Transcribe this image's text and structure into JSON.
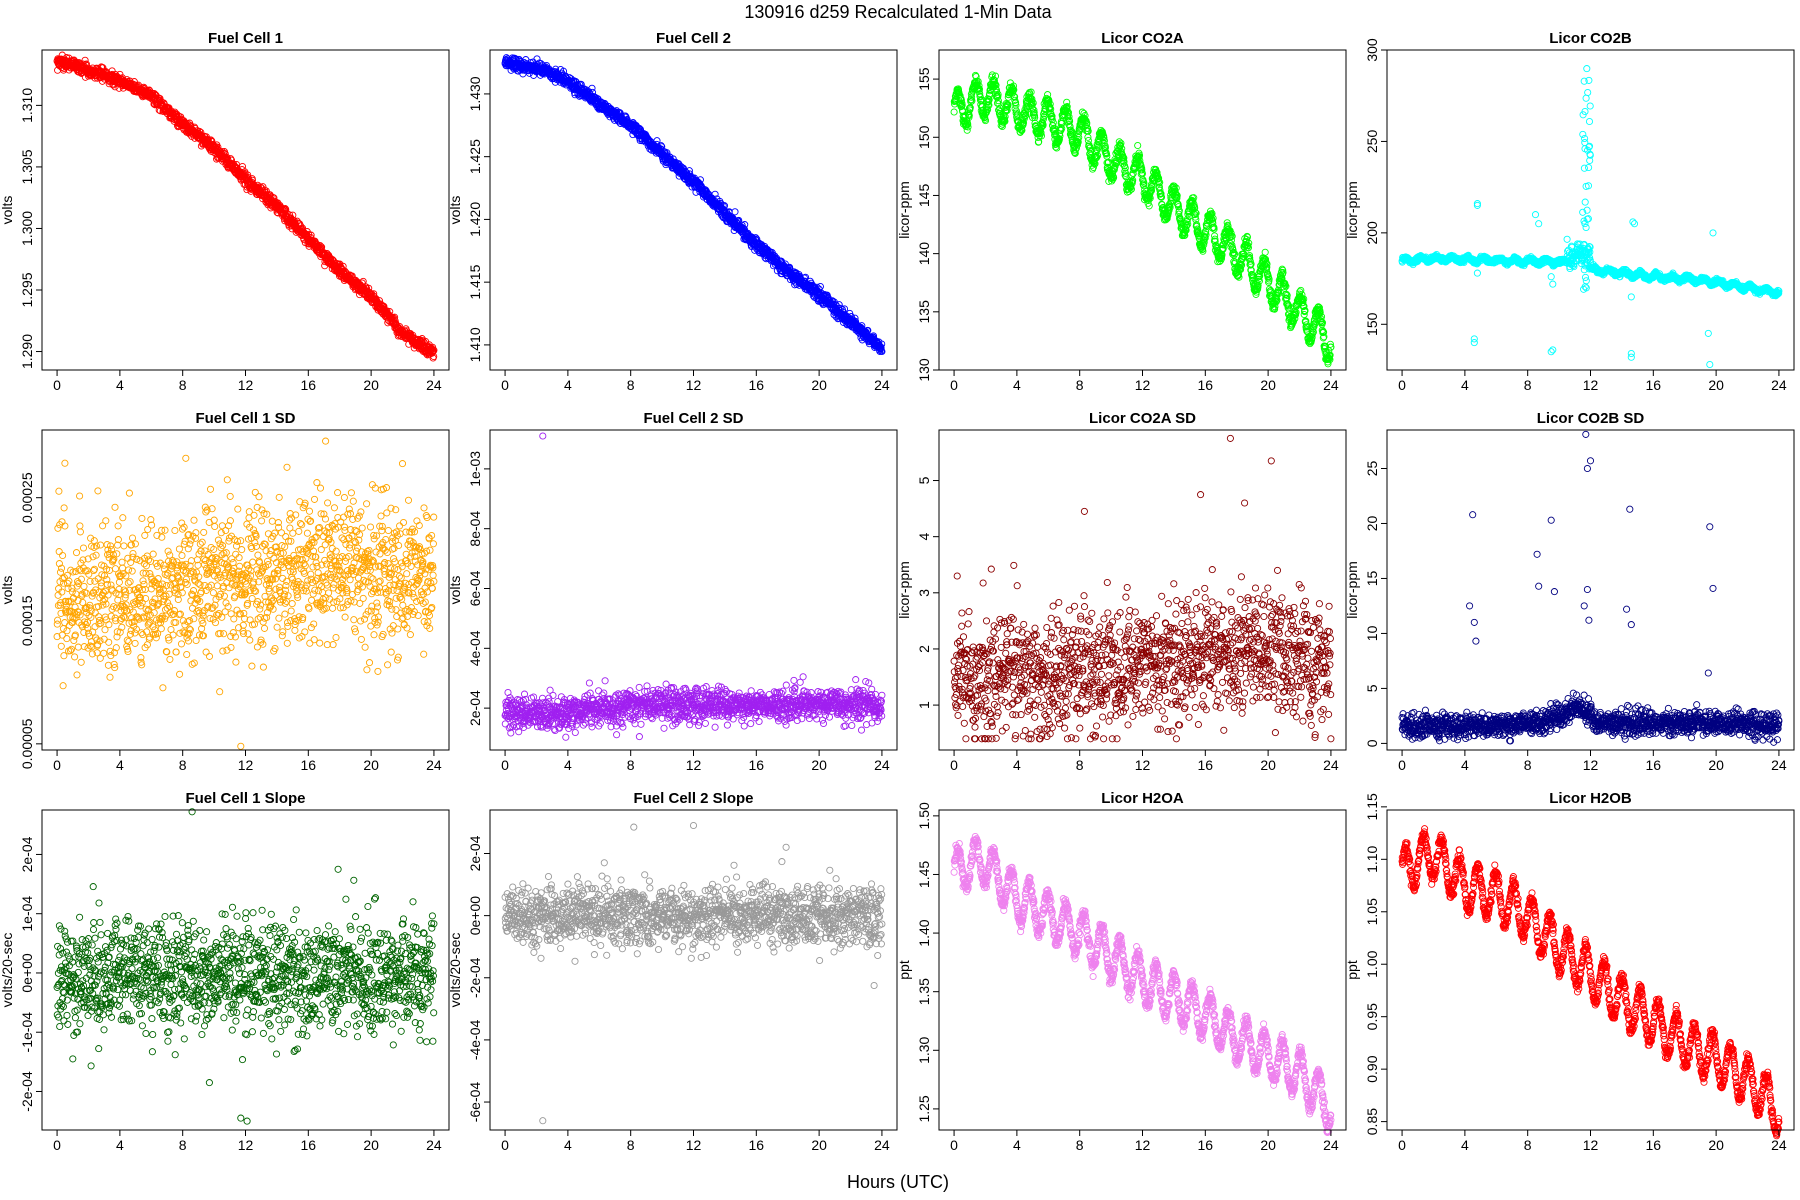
{
  "page": {
    "title": "130916   d259   Recalculated 1-Min Data",
    "xlabel": "Hours (UTC)"
  },
  "chart_data": [
    {
      "id": "fc1",
      "type": "scatter",
      "title": "Fuel Cell 1",
      "ylabel": "volts",
      "color": "#ff0000",
      "xlim": [
        -0.96,
        24.96
      ],
      "ylim": [
        1.2885,
        1.3145
      ],
      "xticks": [
        "0",
        "4",
        "8",
        "12",
        "16",
        "20",
        "24"
      ],
      "yticks": [
        "1.290",
        "1.295",
        "1.300",
        "1.305",
        "1.310"
      ],
      "model": "trend",
      "x_range": [
        0,
        24
      ],
      "n_points": 1440,
      "trend_x": [
        0,
        1,
        2,
        3,
        4,
        6,
        8,
        10,
        12,
        14,
        16,
        18,
        20,
        22,
        24
      ],
      "trend_y": [
        1.3135,
        1.3133,
        1.3128,
        1.3125,
        1.312,
        1.3108,
        1.3085,
        1.3065,
        1.304,
        1.3018,
        1.2992,
        1.2965,
        1.2945,
        1.2915,
        1.2898
      ],
      "noise": 0.00025
    },
    {
      "id": "fc2",
      "type": "scatter",
      "title": "Fuel Cell 2",
      "ylabel": "volts",
      "color": "#0000ff",
      "xlim": [
        -0.96,
        24.96
      ],
      "ylim": [
        1.408,
        1.4335
      ],
      "xticks": [
        "0",
        "4",
        "8",
        "12",
        "16",
        "20",
        "24"
      ],
      "yticks": [
        "1.410",
        "1.415",
        "1.420",
        "1.425",
        "1.430"
      ],
      "model": "trend",
      "x_range": [
        0,
        24
      ],
      "n_points": 1440,
      "trend_x": [
        0,
        1,
        2,
        3,
        4,
        6,
        8,
        10,
        12,
        14,
        16,
        18,
        20,
        22,
        24
      ],
      "trend_y": [
        1.4325,
        1.4323,
        1.432,
        1.4318,
        1.431,
        1.4292,
        1.4275,
        1.4252,
        1.423,
        1.4205,
        1.418,
        1.4158,
        1.414,
        1.4118,
        1.4097
      ],
      "noise": 0.00025
    },
    {
      "id": "co2a",
      "type": "scatter",
      "title": "Licor CO2A",
      "ylabel": "licor-ppm",
      "color": "#00ff00",
      "xlim": [
        -0.96,
        24.96
      ],
      "ylim": [
        130,
        157.5
      ],
      "xticks": [
        "0",
        "4",
        "8",
        "12",
        "16",
        "20",
        "24"
      ],
      "yticks": [
        "130",
        "135",
        "140",
        "145",
        "150",
        "155"
      ],
      "model": "trend",
      "x_range": [
        0,
        24
      ],
      "n_points": 1440,
      "trend_x": [
        0,
        1,
        2,
        3,
        4,
        6,
        8,
        10,
        12,
        14,
        16,
        18,
        20,
        22,
        24
      ],
      "trend_y": [
        152,
        153,
        153.5,
        153,
        152.3,
        151.5,
        150.5,
        148,
        146.5,
        144,
        142,
        140,
        137.5,
        135,
        132.5
      ],
      "wave_amp": 1.6,
      "wave_period": 1.15,
      "noise": 0.3
    },
    {
      "id": "co2b",
      "type": "scatter",
      "title": "Licor CO2B",
      "ylabel": "licor-ppm",
      "color": "#00ffff",
      "xlim": [
        -0.96,
        24.96
      ],
      "ylim": [
        125,
        300
      ],
      "xticks": [
        "0",
        "4",
        "8",
        "12",
        "16",
        "20",
        "24"
      ],
      "yticks": [
        "150",
        "200",
        "250",
        "300"
      ],
      "model": "co2b",
      "x_range": [
        0,
        24
      ],
      "n_points": 1440,
      "trend_x": [
        0,
        2,
        4,
        6,
        8,
        10,
        11.99,
        12,
        14,
        16,
        18,
        20,
        22,
        24
      ],
      "trend_y": [
        185,
        186,
        185.5,
        185,
        184.5,
        184,
        184,
        180,
        178,
        176,
        175,
        173,
        170,
        167
      ],
      "wave_amp": 1.2,
      "wave_period": 1.0,
      "noise": 0.6,
      "outliers": [
        [
          4.6,
          140
        ],
        [
          4.6,
          142
        ],
        [
          4.8,
          215
        ],
        [
          4.8,
          216
        ],
        [
          4.8,
          178
        ],
        [
          9.5,
          135
        ],
        [
          9.6,
          136
        ],
        [
          9.5,
          176
        ],
        [
          9.6,
          172
        ],
        [
          8.5,
          210
        ],
        [
          8.7,
          205
        ],
        [
          14.6,
          132
        ],
        [
          14.6,
          134
        ],
        [
          14.7,
          206
        ],
        [
          14.8,
          205
        ],
        [
          14.6,
          165
        ],
        [
          19.6,
          128
        ],
        [
          19.5,
          145
        ],
        [
          19.8,
          200
        ]
      ],
      "spike_x": 11.75,
      "spike_range": [
        168,
        295
      ],
      "burst_range": [
        10.5,
        12.0
      ],
      "burst_amp": 8
    },
    {
      "id": "fc1sd",
      "type": "scatter",
      "title": "Fuel Cell 1 SD",
      "ylabel": "volts",
      "color": "#ffa500",
      "xlim": [
        -0.96,
        24.96
      ],
      "ylim": [
        4.5e-05,
        0.000305
      ],
      "xticks": [
        "0",
        "4",
        "8",
        "12",
        "16",
        "20",
        "24"
      ],
      "yticks": [
        "0.00005",
        "0.00015",
        "0.00025"
      ],
      "model": "scatter",
      "x_range": [
        0,
        24
      ],
      "n_points": 1440,
      "trend_x": [
        0,
        4,
        8,
        12,
        16,
        20,
        24
      ],
      "trend_y": [
        0.00017,
        0.000165,
        0.00018,
        0.00019,
        0.00019,
        0.00019,
        0.000185
      ],
      "noise": 3e-05,
      "clamp": [
        4.8e-05,
        0.000298
      ],
      "outliers": [
        [
          11.7,
          4.8e-05
        ],
        [
          17.1,
          0.000296
        ],
        [
          0.5,
          0.000278
        ],
        [
          8.2,
          0.000282
        ]
      ]
    },
    {
      "id": "fc2sd",
      "type": "scatter",
      "title": "Fuel Cell 2 SD",
      "ylabel": "volts",
      "color": "#a020f0",
      "xlim": [
        -0.96,
        24.96
      ],
      "ylim": [
        6e-05,
        0.00113
      ],
      "xticks": [
        "0",
        "4",
        "8",
        "12",
        "16",
        "20",
        "24"
      ],
      "yticks": [
        "2e-04",
        "4e-04",
        "6e-04",
        "8e-04",
        "1e-03"
      ],
      "model": "scatter",
      "x_range": [
        0,
        24
      ],
      "n_points": 1440,
      "trend_x": [
        0,
        4,
        8,
        12,
        16,
        20,
        24
      ],
      "trend_y": [
        0.00018,
        0.000185,
        0.000205,
        0.00021,
        0.00021,
        0.000215,
        0.00021
      ],
      "noise": 2.8e-05,
      "clamp": [
        8e-05,
        0.00034
      ],
      "outliers": [
        [
          2.4,
          0.00111
        ]
      ]
    },
    {
      "id": "co2asd",
      "type": "scatter",
      "title": "Licor CO2A SD",
      "ylabel": "licor-ppm",
      "color": "#8b0000",
      "xlim": [
        -0.96,
        24.96
      ],
      "ylim": [
        0.2,
        5.9
      ],
      "xticks": [
        "0",
        "4",
        "8",
        "12",
        "16",
        "20",
        "24"
      ],
      "yticks": [
        "1",
        "2",
        "3",
        "4",
        "5"
      ],
      "model": "scatter",
      "x_range": [
        0,
        24
      ],
      "n_points": 1440,
      "trend_x": [
        0,
        4,
        8,
        12,
        16,
        20,
        24
      ],
      "trend_y": [
        1.45,
        1.5,
        1.55,
        1.7,
        1.9,
        1.95,
        1.8
      ],
      "noise": 0.55,
      "clamp": [
        0.4,
        5.8
      ],
      "outliers": [
        [
          17.6,
          5.75
        ],
        [
          20.2,
          5.35
        ],
        [
          8.3,
          4.45
        ],
        [
          15.7,
          4.75
        ],
        [
          18.5,
          4.6
        ],
        [
          0.2,
          3.3
        ]
      ]
    },
    {
      "id": "co2bsd",
      "type": "scatter",
      "title": "Licor CO2B SD",
      "ylabel": "licor-ppm",
      "color": "#000080",
      "xlim": [
        -0.96,
        24.96
      ],
      "ylim": [
        -0.6,
        28.5
      ],
      "xticks": [
        "0",
        "4",
        "8",
        "12",
        "16",
        "20",
        "24"
      ],
      "yticks": [
        "0",
        "5",
        "10",
        "15",
        "20",
        "25"
      ],
      "model": "scatter",
      "x_range": [
        0,
        24
      ],
      "n_points": 1440,
      "trend_x": [
        0,
        4,
        8,
        10,
        11,
        12,
        12.2,
        16,
        20,
        24
      ],
      "trend_y": [
        1.6,
        1.6,
        1.7,
        2.4,
        3.5,
        2.6,
        1.8,
        1.8,
        1.9,
        1.7
      ],
      "noise": 0.55,
      "clamp": [
        0.1,
        8
      ],
      "outliers": [
        [
          4.5,
          20.8
        ],
        [
          4.3,
          12.5
        ],
        [
          4.6,
          11
        ],
        [
          4.7,
          9.3
        ],
        [
          8.6,
          17.2
        ],
        [
          8.7,
          14.3
        ],
        [
          9.5,
          20.3
        ],
        [
          9.7,
          13.8
        ],
        [
          11.7,
          28.1
        ],
        [
          11.8,
          25
        ],
        [
          12.0,
          25.7
        ],
        [
          11.6,
          12.5
        ],
        [
          11.8,
          14
        ],
        [
          11.9,
          11.2
        ],
        [
          14.5,
          21.3
        ],
        [
          14.3,
          12.2
        ],
        [
          14.6,
          10.8
        ],
        [
          19.6,
          19.7
        ],
        [
          19.8,
          14.1
        ],
        [
          19.5,
          6.4
        ]
      ]
    },
    {
      "id": "fc1slope",
      "type": "scatter",
      "title": "Fuel Cell 1 Slope",
      "ylabel": "volts/20-sec",
      "color": "#006400",
      "xlim": [
        -0.96,
        24.96
      ],
      "ylim": [
        -0.000265,
        0.000275
      ],
      "xticks": [
        "0",
        "4",
        "8",
        "12",
        "16",
        "20",
        "24"
      ],
      "yticks": [
        "-2e-04",
        "-1e-04",
        "0e+00",
        "1e-04",
        "2e-04"
      ],
      "model": "scatter",
      "x_range": [
        0,
        24
      ],
      "n_points": 1440,
      "trend_x": [
        0,
        24
      ],
      "trend_y": [
        -5e-06,
        -5e-06
      ],
      "noise": 4.8e-05,
      "clamp": [
        -0.00019,
        0.00019
      ],
      "outliers": [
        [
          8.6,
          0.000272
        ],
        [
          11.7,
          -0.000245
        ],
        [
          12.1,
          -0.00025
        ],
        [
          9.7,
          -0.000185
        ],
        [
          1.0,
          -0.000145
        ],
        [
          17.9,
          0.000175
        ]
      ]
    },
    {
      "id": "fc2slope",
      "type": "scatter",
      "title": "Fuel Cell 2 Slope",
      "ylabel": "volts/20-sec",
      "color": "#999999",
      "xlim": [
        -0.96,
        24.96
      ],
      "ylim": [
        -0.00069,
        0.00034
      ],
      "xticks": [
        "0",
        "4",
        "8",
        "12",
        "16",
        "20",
        "24"
      ],
      "yticks": [
        "-6e-04",
        "-4e-04",
        "-2e-04",
        "0e+00",
        "2e-04"
      ],
      "model": "scatter",
      "x_range": [
        0,
        24
      ],
      "n_points": 1440,
      "trend_x": [
        0,
        24
      ],
      "trend_y": [
        -2e-06,
        -2e-06
      ],
      "noise": 4.8e-05,
      "clamp": [
        -0.00018,
        0.00018
      ],
      "outliers": [
        [
          2.4,
          -0.00066
        ],
        [
          8.2,
          0.000285
        ],
        [
          12.0,
          0.00029
        ],
        [
          17.9,
          0.00022
        ],
        [
          23.5,
          -0.000225
        ]
      ]
    },
    {
      "id": "h2oa",
      "type": "scatter",
      "title": "Licor H2OA",
      "ylabel": "ppt",
      "color": "#ee82ee",
      "xlim": [
        -0.96,
        24.96
      ],
      "ylim": [
        1.232,
        1.505
      ],
      "xticks": [
        "0",
        "4",
        "8",
        "12",
        "16",
        "20",
        "24"
      ],
      "yticks": [
        "1.25",
        "1.30",
        "1.35",
        "1.40",
        "1.45",
        "1.50"
      ],
      "model": "trend",
      "x_range": [
        0,
        24
      ],
      "n_points": 1440,
      "trend_x": [
        0,
        1,
        2,
        3,
        4,
        6,
        8,
        10,
        12,
        14,
        16,
        18,
        20,
        22,
        24
      ],
      "trend_y": [
        1.45,
        1.46,
        1.46,
        1.445,
        1.43,
        1.415,
        1.4,
        1.38,
        1.36,
        1.345,
        1.33,
        1.31,
        1.295,
        1.28,
        1.25
      ],
      "wave_amp": 0.019,
      "wave_period": 1.15,
      "noise": 0.003
    },
    {
      "id": "h2ob",
      "type": "scatter",
      "title": "Licor H2OB",
      "ylabel": "ppt",
      "color": "#ff0000",
      "xlim": [
        -0.96,
        24.96
      ],
      "ylim": [
        0.842,
        1.147
      ],
      "xticks": [
        "0",
        "4",
        "8",
        "12",
        "16",
        "20",
        "24"
      ],
      "yticks": [
        "0.85",
        "0.90",
        "0.95",
        "1.00",
        "1.05",
        "1.10",
        "1.15"
      ],
      "model": "trend",
      "x_range": [
        0,
        24
      ],
      "n_points": 1440,
      "trend_x": [
        0,
        1,
        2,
        3,
        4,
        6,
        8,
        10,
        12,
        14,
        16,
        18,
        20,
        22,
        24
      ],
      "trend_y": [
        1.085,
        1.1,
        1.105,
        1.09,
        1.075,
        1.065,
        1.045,
        1.015,
        0.99,
        0.965,
        0.945,
        0.925,
        0.91,
        0.89,
        0.86
      ],
      "wave_amp": 0.022,
      "wave_period": 1.15,
      "noise": 0.003
    }
  ]
}
